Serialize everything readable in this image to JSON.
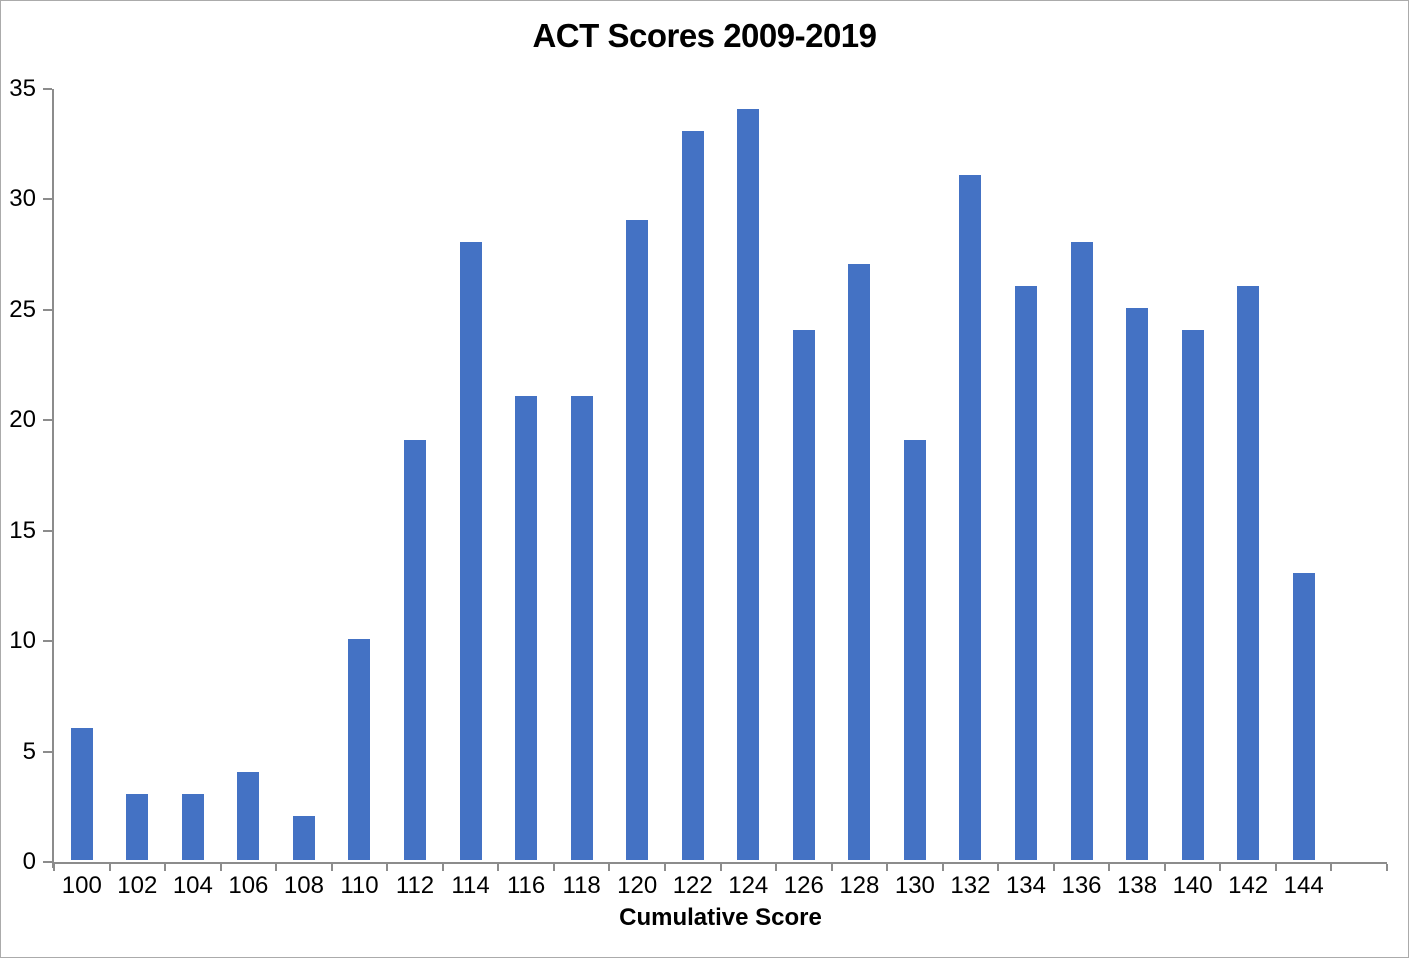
{
  "chart_data": {
    "type": "bar",
    "title": "ACT Scores 2009-2019",
    "xlabel": "Cumulative Score",
    "ylabel": "",
    "categories": [
      "100",
      "102",
      "104",
      "106",
      "108",
      "110",
      "112",
      "114",
      "116",
      "118",
      "120",
      "122",
      "124",
      "126",
      "128",
      "130",
      "132",
      "134",
      "136",
      "138",
      "140",
      "142",
      "144"
    ],
    "values": [
      6,
      3,
      3,
      4,
      2,
      10,
      19,
      28,
      21,
      21,
      29,
      33,
      34,
      24,
      27,
      19,
      31,
      26,
      28,
      25,
      24,
      26,
      13
    ],
    "ylim": [
      0,
      35
    ],
    "yticks": [
      0,
      5,
      10,
      15,
      20,
      25,
      30,
      35
    ],
    "grid": false,
    "legend_position": "none",
    "bar_color": "#4472C4",
    "axis_color": "#8C8C8C",
    "text_color": "#000000",
    "background_color": "#FFFFFF",
    "extra_right_slots": 1
  }
}
